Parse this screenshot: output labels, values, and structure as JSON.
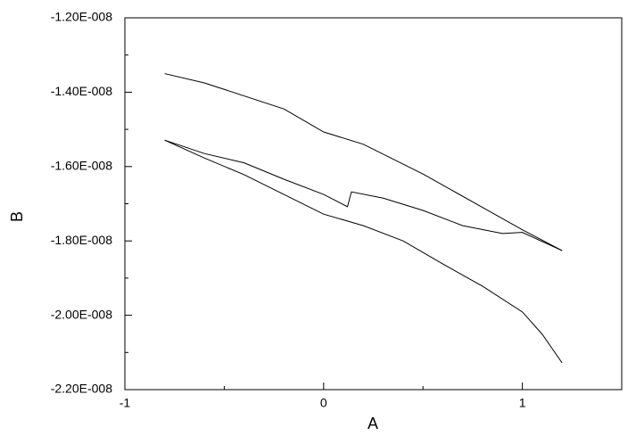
{
  "chart_data": {
    "type": "line",
    "x_label": "A",
    "y_label": "B",
    "xlim": [
      -1,
      1.5
    ],
    "xticks": [
      -1,
      0,
      1
    ],
    "xminorticks": [
      -0.5,
      0.5
    ],
    "ylim": [
      -2.2e-08,
      -1.2e-08
    ],
    "yticks": [
      {
        "value": -2.2e-08,
        "label": "-2.20E-008"
      },
      {
        "value": -2e-08,
        "label": "-2.00E-008"
      },
      {
        "value": -1.8e-08,
        "label": "-1.80E-008"
      },
      {
        "value": -1.6e-08,
        "label": "-1.60E-008"
      },
      {
        "value": -1.4e-08,
        "label": "-1.40E-008"
      },
      {
        "value": -1.2e-08,
        "label": "-1.20E-008"
      }
    ],
    "yminorticks": [
      -2.1e-08,
      -1.9e-08,
      -1.7e-08,
      -1.5e-08,
      -1.3e-08
    ],
    "series": [
      {
        "color": "#000000",
        "x": [
          -0.8,
          -0.6,
          -0.2,
          0,
          0.2,
          0.5,
          0.8,
          1.0,
          1.2
        ],
        "values": [
          -1.35e-08,
          -1.375e-08,
          -1.445e-08,
          -1.507e-08,
          -1.54e-08,
          -1.62e-08,
          -1.71e-08,
          -1.77e-08,
          -1.826e-08
        ]
      },
      {
        "color": "#000000",
        "x": [
          -0.8,
          -0.6,
          -0.4,
          -0.2,
          0,
          0.12,
          0.14,
          0.3,
          0.5,
          0.7,
          0.9,
          1.0,
          1.2
        ],
        "values": [
          -1.529e-08,
          -1.565e-08,
          -1.59e-08,
          -1.634e-08,
          -1.675e-08,
          -1.708e-08,
          -1.668e-08,
          -1.685e-08,
          -1.718e-08,
          -1.759e-08,
          -1.78e-08,
          -1.777e-08,
          -1.826e-08
        ]
      },
      {
        "color": "#000000",
        "x": [
          -0.8,
          -0.6,
          -0.4,
          -0.2,
          0,
          0.2,
          0.4,
          0.6,
          0.8,
          1.0,
          1.1,
          1.2
        ],
        "values": [
          -1.529e-08,
          -1.577e-08,
          -1.622e-08,
          -1.675e-08,
          -1.728e-08,
          -1.759e-08,
          -1.8e-08,
          -1.862e-08,
          -1.922e-08,
          -1.991e-08,
          -2.051e-08,
          -2.128e-08
        ]
      }
    ]
  }
}
